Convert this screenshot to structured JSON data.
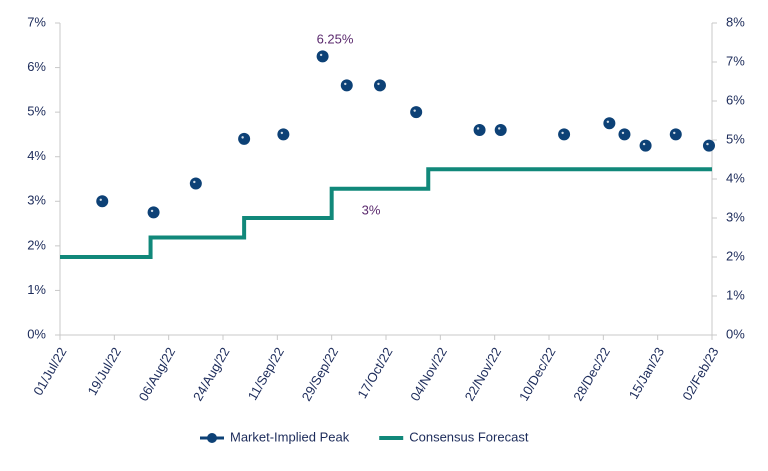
{
  "chart_data": {
    "type": "line",
    "annotations": [
      "6.25%",
      "3%"
    ],
    "xlim": [
      "2022-07-01",
      "2023-02-02"
    ],
    "xticks": [
      {
        "value": "2022-07-01",
        "label": "01/Jul/22"
      },
      {
        "value": "2022-07-19",
        "label": "19/Jul/22"
      },
      {
        "value": "2022-08-06",
        "label": "06/Aug/22"
      },
      {
        "value": "2022-08-24",
        "label": "24/Aug/22"
      },
      {
        "value": "2022-09-11",
        "label": "11/Sep/22"
      },
      {
        "value": "2022-09-29",
        "label": "29/Sep/22"
      },
      {
        "value": "2022-10-17",
        "label": "17/Oct/22"
      },
      {
        "value": "2022-11-04",
        "label": "04/Nov/22"
      },
      {
        "value": "2022-11-22",
        "label": "22/Nov/22"
      },
      {
        "value": "2022-12-10",
        "label": "10/Dec/22"
      },
      {
        "value": "2022-12-28",
        "label": "28/Dec/22"
      },
      {
        "value": "2023-01-15",
        "label": "15/Jan/23"
      },
      {
        "value": "2023-02-02",
        "label": "02/Feb/23"
      }
    ],
    "ylim": [
      0,
      7
    ],
    "yticks": [
      {
        "value": 0,
        "label": "0%"
      },
      {
        "value": 1,
        "label": "1%"
      },
      {
        "value": 2,
        "label": "2%"
      },
      {
        "value": 3,
        "label": "3%"
      },
      {
        "value": 4,
        "label": "4%"
      },
      {
        "value": 5,
        "label": "5%"
      },
      {
        "value": 6,
        "label": "6%"
      },
      {
        "value": 7,
        "label": "7%"
      }
    ],
    "y2lim": [
      0,
      8
    ],
    "y2ticks": [
      {
        "value": 0,
        "label": "0%"
      },
      {
        "value": 1,
        "label": "1%"
      },
      {
        "value": 2,
        "label": "2%"
      },
      {
        "value": 3,
        "label": "3%"
      },
      {
        "value": 4,
        "label": "4%"
      },
      {
        "value": 5,
        "label": "5%"
      },
      {
        "value": 6,
        "label": "6%"
      },
      {
        "value": 7,
        "label": "7%"
      },
      {
        "value": 8,
        "label": "8%"
      }
    ],
    "series": [
      {
        "name": "Market-Implied Peak",
        "color": "#0d4176",
        "style": "markers",
        "x": [
          "2022-07-15",
          "2022-08-01",
          "2022-08-15",
          "2022-08-31",
          "2022-09-13",
          "2022-09-26",
          "2022-10-04",
          "2022-10-15",
          "2022-10-27",
          "2022-11-17",
          "2022-11-24",
          "2022-12-15",
          "2022-12-30",
          "2023-01-04",
          "2023-01-11",
          "2023-01-21",
          "2023-02-01"
        ],
        "values": [
          3.0,
          2.75,
          3.4,
          4.4,
          4.5,
          6.25,
          5.6,
          5.6,
          5.0,
          4.6,
          4.6,
          4.5,
          4.75,
          4.5,
          4.25,
          4.5,
          4.25
        ]
      },
      {
        "name": "Consensus Forecast",
        "color": "#11887a",
        "style": "step",
        "axis": "y2",
        "x": [
          "2022-07-01",
          "2022-07-31",
          "2022-08-31",
          "2022-09-29",
          "2022-10-31",
          "2023-02-02"
        ],
        "values": [
          2.0,
          2.5,
          3.0,
          3.75,
          4.25,
          4.25
        ]
      }
    ]
  }
}
